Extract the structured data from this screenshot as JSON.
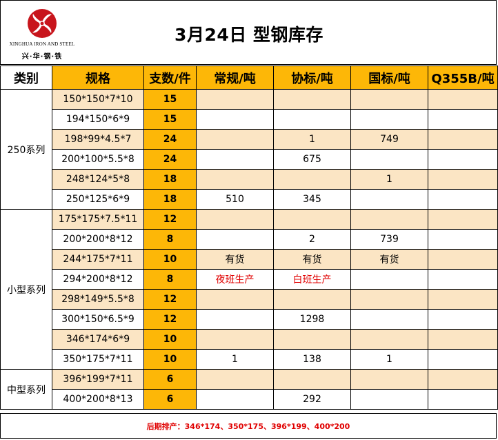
{
  "logo": {
    "english_name": "XINGHUA IRON AND STEEL",
    "chinese_name": "兴·华·钢·铁",
    "color": "#c8151c"
  },
  "title": "3月24日  型钢库存",
  "headers": [
    "类别",
    "规格",
    "支数/件",
    "常规/吨",
    "协标/吨",
    "国标/吨",
    "Q355B/吨"
  ],
  "colors": {
    "header_fill": "#fdb707",
    "alt_row_fill": "#fbe5c4",
    "note_red": "#e00000"
  },
  "groups": [
    {
      "category": "250系列",
      "rows": [
        {
          "spec": "150*150*7*10",
          "count": "15",
          "regular": "",
          "association": "",
          "national": "",
          "q355b": ""
        },
        {
          "spec": "194*150*6*9",
          "count": "15",
          "regular": "",
          "association": "",
          "national": "",
          "q355b": ""
        },
        {
          "spec": "198*99*4.5*7",
          "count": "24",
          "regular": "",
          "association": "1",
          "national": "749",
          "q355b": ""
        },
        {
          "spec": "200*100*5.5*8",
          "count": "24",
          "regular": "",
          "association": "675",
          "national": "",
          "q355b": ""
        },
        {
          "spec": "248*124*5*8",
          "count": "18",
          "regular": "",
          "association": "",
          "national": "1",
          "q355b": ""
        },
        {
          "spec": "250*125*6*9",
          "count": "18",
          "regular": "510",
          "association": "345",
          "national": "",
          "q355b": ""
        }
      ]
    },
    {
      "category": "小型系列",
      "rows": [
        {
          "spec": "175*175*7.5*11",
          "count": "12",
          "regular": "",
          "association": "",
          "national": "",
          "q355b": ""
        },
        {
          "spec": "200*200*8*12",
          "count": "8",
          "regular": "",
          "association": "2",
          "national": "739",
          "q355b": ""
        },
        {
          "spec": "244*175*7*11",
          "count": "10",
          "regular": "有货",
          "association": "有货",
          "national": "有货",
          "q355b": ""
        },
        {
          "spec": "294*200*8*12",
          "count": "8",
          "regular": "夜班生产",
          "association": "白班生产",
          "national": "",
          "q355b": ""
        },
        {
          "spec": "298*149*5.5*8",
          "count": "12",
          "regular": "",
          "association": "",
          "national": "",
          "q355b": ""
        },
        {
          "spec": "300*150*6.5*9",
          "count": "12",
          "regular": "",
          "association": "1298",
          "national": "",
          "q355b": ""
        },
        {
          "spec": "346*174*6*9",
          "count": "10",
          "regular": "",
          "association": "",
          "national": "",
          "q355b": ""
        },
        {
          "spec": "350*175*7*11",
          "count": "10",
          "regular": "1",
          "association": "138",
          "national": "1",
          "q355b": ""
        }
      ]
    },
    {
      "category": "中型系列",
      "rows": [
        {
          "spec": "396*199*7*11",
          "count": "6",
          "regular": "",
          "association": "",
          "national": "",
          "q355b": ""
        },
        {
          "spec": "400*200*8*13",
          "count": "6",
          "regular": "",
          "association": "292",
          "national": "",
          "q355b": ""
        }
      ]
    }
  ],
  "footer_note": "后期排产：346*174、350*175、396*199、400*200"
}
